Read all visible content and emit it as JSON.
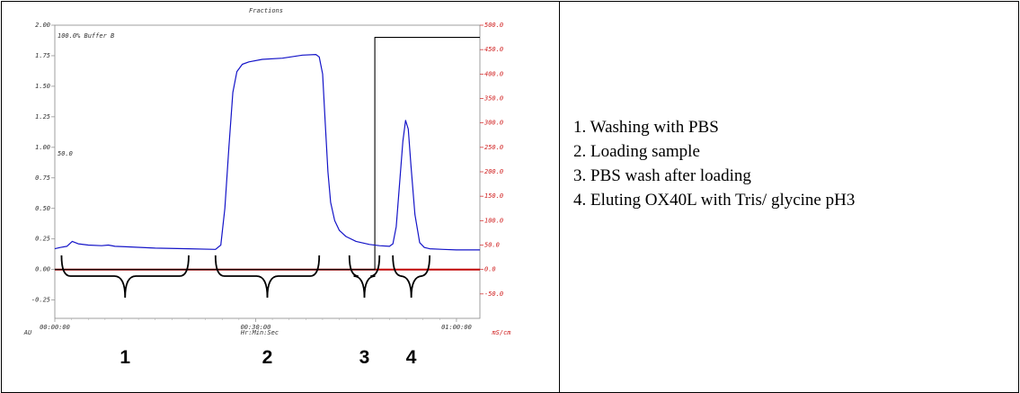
{
  "chart_data": {
    "type": "line",
    "title": "Fractions",
    "xlabel": "Hr:Min:Sec",
    "ylabel_left": "AU",
    "ylabel_right": "mS/cm",
    "x_unit": "minutes",
    "xlim": [
      0,
      63.5
    ],
    "ylim_left": [
      -0.4,
      2.0
    ],
    "ylim_right": [
      -100,
      500
    ],
    "x_ticks": [
      {
        "value": 0,
        "label": "00:00:00"
      },
      {
        "value": 30,
        "label": "00:30:00"
      },
      {
        "value": 60,
        "label": "01:00:00"
      }
    ],
    "y_left_ticks": [
      {
        "value": 2.0,
        "label": "2.00"
      },
      {
        "value": 1.75,
        "label": "1.75"
      },
      {
        "value": 1.5,
        "label": "1.50"
      },
      {
        "value": 1.25,
        "label": "1.25"
      },
      {
        "value": 1.0,
        "label": "1.00"
      },
      {
        "value": 0.75,
        "label": "0.75"
      },
      {
        "value": 0.5,
        "label": "0.50"
      },
      {
        "value": 0.25,
        "label": "0.25"
      },
      {
        "value": 0.0,
        "label": "0.00"
      },
      {
        "value": -0.25,
        "label": "-0.25"
      }
    ],
    "y_right_ticks": [
      {
        "value": 500,
        "label": "500.0"
      },
      {
        "value": 450,
        "label": "450.0"
      },
      {
        "value": 400,
        "label": "400.0"
      },
      {
        "value": 350,
        "label": "350.0"
      },
      {
        "value": 300,
        "label": "300.0"
      },
      {
        "value": 250,
        "label": "250.0"
      },
      {
        "value": 200,
        "label": "200.0"
      },
      {
        "value": 150,
        "label": "150.0"
      },
      {
        "value": 100,
        "label": "100.0"
      },
      {
        "value": 50,
        "label": "50.0"
      },
      {
        "value": 0,
        "label": "0.0"
      },
      {
        "value": -50,
        "label": "-50.0"
      }
    ],
    "annotations": [
      "100.0% Buffer B",
      "50.0"
    ],
    "series": [
      {
        "color": "#1414c8",
        "axis": "left",
        "x": [
          0,
          0.8,
          1.8,
          2.6,
          3.5,
          5,
          7,
          8,
          9,
          11,
          15,
          20,
          24,
          24.8,
          25.4,
          26,
          26.6,
          27.2,
          28,
          29,
          31,
          34,
          37,
          39,
          39.5,
          40,
          40.4,
          40.8,
          41.2,
          41.8,
          42.5,
          43.5,
          45,
          47,
          48.5,
          50,
          50.5,
          51,
          51.5,
          52,
          52.4,
          52.8,
          53.2,
          53.8,
          54.5,
          55.2,
          56,
          58,
          60,
          63.5
        ],
        "y": [
          0.17,
          0.18,
          0.19,
          0.23,
          0.21,
          0.2,
          0.195,
          0.2,
          0.19,
          0.185,
          0.175,
          0.17,
          0.165,
          0.2,
          0.5,
          1.0,
          1.45,
          1.62,
          1.68,
          1.7,
          1.72,
          1.73,
          1.755,
          1.76,
          1.74,
          1.6,
          1.2,
          0.8,
          0.55,
          0.4,
          0.32,
          0.27,
          0.23,
          0.205,
          0.195,
          0.19,
          0.21,
          0.35,
          0.7,
          1.05,
          1.22,
          1.15,
          0.85,
          0.45,
          0.22,
          0.18,
          0.17,
          0.165,
          0.16,
          0.16
        ]
      },
      {
        "color": "#000000",
        "axis": "right",
        "x": [
          0,
          47.8,
          47.8,
          63.5
        ],
        "y": [
          0,
          0,
          475,
          475
        ]
      },
      {
        "color": "#c00000",
        "axis": "right",
        "x": [
          0,
          63.5
        ],
        "y": [
          0,
          0
        ]
      }
    ],
    "segments": [
      {
        "label": "1",
        "x_start": 1,
        "x_end": 20
      },
      {
        "label": "2",
        "x_start": 24,
        "x_end": 39.5
      },
      {
        "label": "3",
        "x_start": 44,
        "x_end": 48.5
      },
      {
        "label": "4",
        "x_start": 50.5,
        "x_end": 56
      }
    ]
  },
  "legend_items": [
    "1. Washing with PBS",
    "2. Loading sample",
    "3. PBS wash after loading",
    "4. Eluting OX40L with Tris/ glycine pH3"
  ]
}
